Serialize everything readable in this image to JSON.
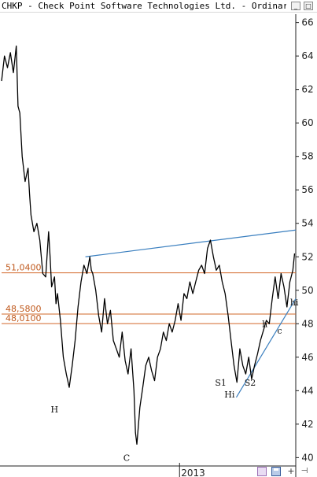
{
  "window": {
    "title": "CHKP - Check Point Software Technologies Ltd. - Ordinary Sha",
    "minimize_glyph": "_",
    "maximize_glyph": "□"
  },
  "toolbar": {
    "icons": [
      "zoom-icon",
      "save-icon",
      "add-icon",
      "pin-icon"
    ],
    "add_glyph": "+",
    "pin_glyph": "⊣"
  },
  "chart_data": {
    "type": "line",
    "title": "",
    "xlabel": "",
    "ylabel": "",
    "ylim": [
      39.5,
      66.5
    ],
    "xlim": [
      0,
      100
    ],
    "y_ticks": [
      40,
      42,
      44,
      46,
      48,
      50,
      52,
      54,
      56,
      58,
      60,
      62,
      64,
      66
    ],
    "x_ticks": [
      {
        "label": "2013",
        "x": 60.5
      }
    ],
    "grid": false,
    "colors": {
      "price": "#000000",
      "resistance_line": "#3a7fbf",
      "support_trendline": "#3a7fbf",
      "horizontal_levels": "#d2682a",
      "level_labels": "#c05a1e"
    },
    "series": [
      {
        "points": [
          [
            0,
            62.5
          ],
          [
            1,
            64.0
          ],
          [
            2,
            63.3
          ],
          [
            3,
            64.2
          ],
          [
            4,
            63.0
          ],
          [
            5,
            64.6
          ],
          [
            5.6,
            61.0
          ],
          [
            6.2,
            60.6
          ],
          [
            7,
            58.0
          ],
          [
            8,
            56.5
          ],
          [
            9,
            57.3
          ],
          [
            9.5,
            55.8
          ],
          [
            10,
            54.5
          ],
          [
            11,
            53.5
          ],
          [
            12,
            54.0
          ],
          [
            13,
            53.0
          ],
          [
            14,
            51.0
          ],
          [
            15,
            50.8
          ],
          [
            16,
            53.5
          ],
          [
            16.5,
            52.0
          ],
          [
            17,
            50.2
          ],
          [
            18,
            50.8
          ],
          [
            18.5,
            49.2
          ],
          [
            19,
            49.8
          ],
          [
            20,
            48.2
          ],
          [
            21,
            46.0
          ],
          [
            22,
            45.0
          ],
          [
            23,
            44.2
          ],
          [
            24,
            45.5
          ],
          [
            25,
            47.0
          ],
          [
            26,
            49.0
          ],
          [
            27,
            50.5
          ],
          [
            28,
            51.5
          ],
          [
            29,
            51.0
          ],
          [
            30,
            52.0
          ],
          [
            30.5,
            51.2
          ],
          [
            31,
            51.0
          ],
          [
            32,
            50.0
          ],
          [
            33,
            48.5
          ],
          [
            34,
            47.5
          ],
          [
            35,
            49.5
          ],
          [
            36,
            48.0
          ],
          [
            37,
            48.8
          ],
          [
            38,
            47.0
          ],
          [
            39,
            46.5
          ],
          [
            40,
            46.0
          ],
          [
            41,
            47.5
          ],
          [
            42,
            45.8
          ],
          [
            43,
            45.0
          ],
          [
            44,
            46.5
          ],
          [
            45,
            44.0
          ],
          [
            45.5,
            41.5
          ],
          [
            46,
            40.8
          ],
          [
            47,
            43.0
          ],
          [
            48,
            44.2
          ],
          [
            49,
            45.5
          ],
          [
            50,
            46.0
          ],
          [
            51,
            45.2
          ],
          [
            52,
            44.6
          ],
          [
            53,
            46.0
          ],
          [
            54,
            46.5
          ],
          [
            55,
            47.5
          ],
          [
            56,
            47.0
          ],
          [
            57,
            48.0
          ],
          [
            58,
            47.5
          ],
          [
            59,
            48.2
          ],
          [
            60,
            49.2
          ],
          [
            61,
            48.2
          ],
          [
            62,
            49.8
          ],
          [
            63,
            49.5
          ],
          [
            64,
            50.5
          ],
          [
            65,
            49.8
          ],
          [
            66,
            50.5
          ],
          [
            67,
            51.2
          ],
          [
            68,
            51.5
          ],
          [
            69,
            51.0
          ],
          [
            70,
            52.5
          ],
          [
            71,
            53.0
          ],
          [
            72,
            52.0
          ],
          [
            73,
            51.2
          ],
          [
            74,
            51.5
          ],
          [
            75,
            50.5
          ],
          [
            76,
            49.8
          ],
          [
            77,
            48.5
          ],
          [
            78,
            47.0
          ],
          [
            79,
            45.5
          ],
          [
            80,
            44.5
          ],
          [
            81,
            46.5
          ],
          [
            82,
            45.5
          ],
          [
            83,
            45.0
          ],
          [
            84,
            46.0
          ],
          [
            85,
            44.7
          ],
          [
            86,
            45.5
          ],
          [
            87,
            46.2
          ],
          [
            88,
            47.0
          ],
          [
            89,
            47.6
          ],
          [
            90,
            48.2
          ],
          [
            91,
            48.0
          ],
          [
            92,
            49.5
          ],
          [
            93,
            50.8
          ],
          [
            94,
            49.5
          ],
          [
            95,
            51.0
          ],
          [
            96,
            50.2
          ],
          [
            97,
            49.0
          ],
          [
            98,
            50.5
          ],
          [
            99,
            51.2
          ],
          [
            99.6,
            52.2
          ]
        ]
      }
    ],
    "horizontal_levels": [
      {
        "label": "51,0400",
        "value": 51.04
      },
      {
        "label": "48,5800",
        "value": 48.58
      },
      {
        "label": "48,0100",
        "value": 48.01
      }
    ],
    "trendlines": [
      {
        "name": "resistance",
        "from": [
          28.5,
          52.0
        ],
        "to": [
          100,
          53.6
        ]
      },
      {
        "name": "support",
        "from": [
          79.8,
          43.6
        ],
        "to": [
          100,
          49.5
        ]
      }
    ],
    "annotations": [
      {
        "text": "H",
        "x": 18.0,
        "y": 42.7
      },
      {
        "text": "C",
        "x": 42.5,
        "y": 39.8
      },
      {
        "text": "S1",
        "x": 74.5,
        "y": 44.3
      },
      {
        "text": "Hi",
        "x": 77.5,
        "y": 43.6
      },
      {
        "text": "S2",
        "x": 84.5,
        "y": 44.3
      },
      {
        "text": "h",
        "x": 89.5,
        "y": 47.8
      },
      {
        "text": "c",
        "x": 94.5,
        "y": 47.4
      },
      {
        "text": "hi",
        "x": 99.5,
        "y": 49.1
      }
    ]
  }
}
